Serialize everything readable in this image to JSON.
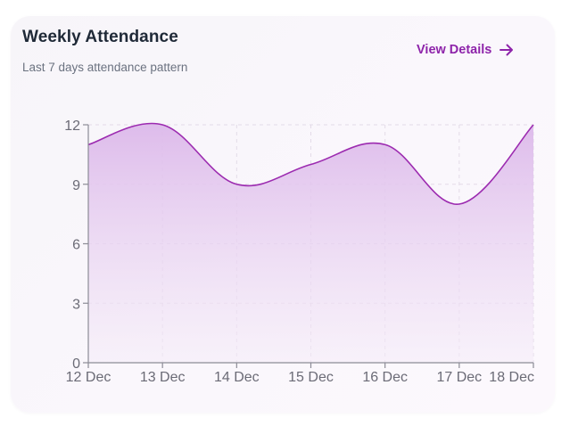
{
  "card": {
    "title": "Weekly Attendance",
    "subtitle": "Last 7 days attendance pattern",
    "action_label": "View Details"
  },
  "colors": {
    "accent": "#8e24aa",
    "line": "#9c2bb0",
    "area_top": "#dcb8ea",
    "grid": "#e3dbe8",
    "axis": "#8c8c96"
  },
  "chart_data": {
    "type": "area",
    "categories": [
      "12 Dec",
      "13 Dec",
      "14 Dec",
      "15 Dec",
      "16 Dec",
      "17 Dec",
      "18 Dec"
    ],
    "values": [
      11,
      12,
      9,
      10,
      11,
      8,
      12
    ],
    "ylim": [
      0,
      12
    ],
    "yticks": [
      0,
      3,
      6,
      9,
      12
    ],
    "grid": true,
    "legend": "none",
    "title": "",
    "xlabel": "",
    "ylabel": ""
  }
}
